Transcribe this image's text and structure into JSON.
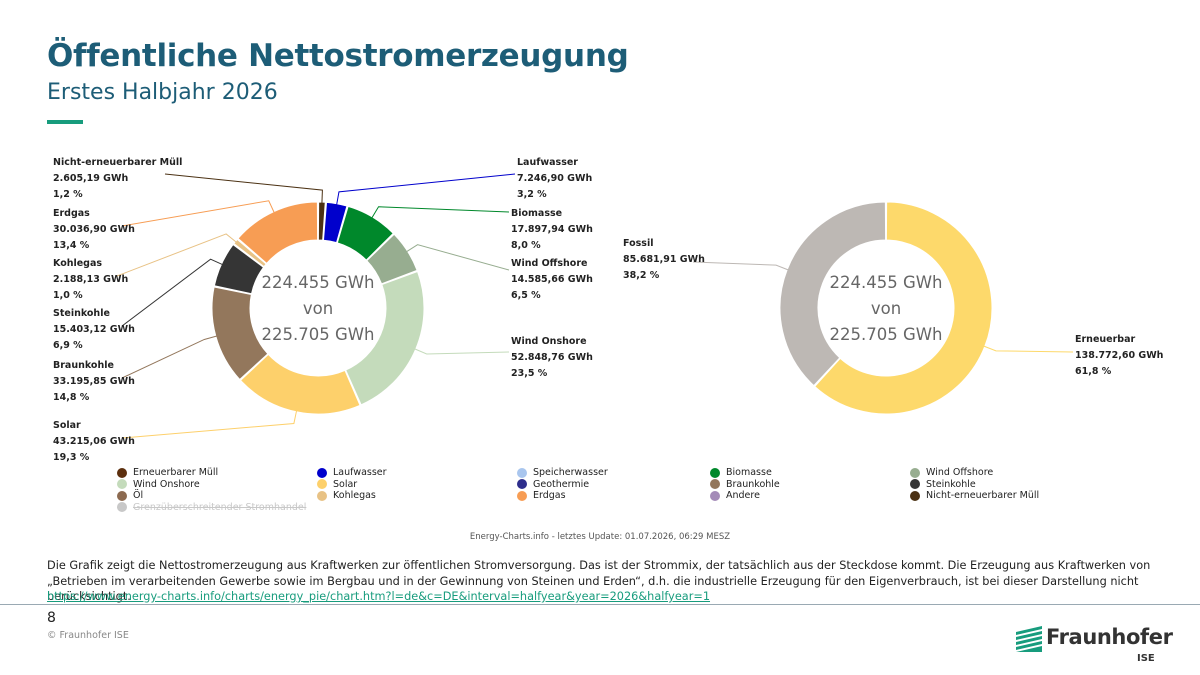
{
  "header": {
    "title": "Öffentliche Nettostromerzeugung",
    "subtitle": "Erstes Halbjahr 2026"
  },
  "chart_data": [
    {
      "type": "pie",
      "center_text": [
        "224.455 GWh",
        "von",
        "225.705 GWh"
      ],
      "slices": [
        {
          "name": "Nicht-erneuerbarer Müll",
          "value": 2605.19,
          "value_text": "2.605,19 GWh",
          "pct_text": "1,2 %",
          "color": "#4b3113"
        },
        {
          "name": "Laufwasser",
          "value": 7246.9,
          "value_text": "7.246,90 GWh",
          "pct_text": "3,2 %",
          "color": "#0000cc"
        },
        {
          "name": "Biomasse",
          "value": 17897.94,
          "value_text": "17.897,94 GWh",
          "pct_text": "8,0 %",
          "color": "#00882b"
        },
        {
          "name": "Wind Offshore",
          "value": 14585.66,
          "value_text": "14.585,66 GWh",
          "pct_text": "6,5 %",
          "color": "#97ad90"
        },
        {
          "name": "Wind Onshore",
          "value": 52848.76,
          "value_text": "52.848,76 GWh",
          "pct_text": "23,5 %",
          "color": "#c4dbbb"
        },
        {
          "name": "Solar",
          "value": 43215.06,
          "value_text": "43.215,06 GWh",
          "pct_text": "19,3 %",
          "color": "#fdd06b"
        },
        {
          "name": "Braunkohle",
          "value": 33195.85,
          "value_text": "33.195,85 GWh",
          "pct_text": "14,8 %",
          "color": "#93775c"
        },
        {
          "name": "Steinkohle",
          "value": 15403.12,
          "value_text": "15.403,12 GWh",
          "pct_text": "6,9 %",
          "color": "#353535"
        },
        {
          "name": "Kohlegas",
          "value": 2188.13,
          "value_text": "2.188,13 GWh",
          "pct_text": "1,0 %",
          "color": "#e8c285"
        },
        {
          "name": "Erdgas",
          "value": 30036.9,
          "value_text": "30.036,90 GWh",
          "pct_text": "13,4 %",
          "color": "#f79d54"
        },
        {
          "name": "Erneuerbarer Müll",
          "value": 0,
          "value_text": "",
          "pct_text": "",
          "color": "#5c2f0e"
        },
        {
          "name": "Öl",
          "value": 0,
          "value_text": "",
          "pct_text": "",
          "color": "#8c6a50"
        }
      ]
    },
    {
      "type": "pie",
      "center_text": [
        "224.455 GWh",
        "von",
        "225.705 GWh"
      ],
      "slices": [
        {
          "name": "Erneuerbar",
          "value": 138772.6,
          "value_text": "138.772,60 GWh",
          "pct_text": "61,8 %",
          "color": "#fdd96b"
        },
        {
          "name": "Fossil",
          "value": 85681.91,
          "value_text": "85.681,91 GWh",
          "pct_text": "38,2 %",
          "color": "#bdb8b4"
        }
      ]
    }
  ],
  "legend": [
    {
      "label": "Erneuerbarer Müll",
      "color": "#5c2f0e",
      "enabled": true
    },
    {
      "label": "Laufwasser",
      "color": "#0000cc",
      "enabled": true
    },
    {
      "label": "Speicherwasser",
      "color": "#a9c6ee",
      "enabled": true
    },
    {
      "label": "Biomasse",
      "color": "#00882b",
      "enabled": true
    },
    {
      "label": "Wind Offshore",
      "color": "#97ad90",
      "enabled": true
    },
    {
      "label": "Wind Onshore",
      "color": "#c4dbbb",
      "enabled": true
    },
    {
      "label": "Solar",
      "color": "#fdd06b",
      "enabled": true
    },
    {
      "label": "Geothermie",
      "color": "#2e2e8c",
      "enabled": true
    },
    {
      "label": "Braunkohle",
      "color": "#93775c",
      "enabled": true
    },
    {
      "label": "Steinkohle",
      "color": "#353535",
      "enabled": true
    },
    {
      "label": "Öl",
      "color": "#8c6a50",
      "enabled": true
    },
    {
      "label": "Kohlegas",
      "color": "#e8c285",
      "enabled": true
    },
    {
      "label": "Erdgas",
      "color": "#f79d54",
      "enabled": true
    },
    {
      "label": "Andere",
      "color": "#a48bb8",
      "enabled": true
    },
    {
      "label": "Nicht-erneuerbarer Müll",
      "color": "#4b3113",
      "enabled": true
    },
    {
      "label": "Grenzüberschreitender Stromhandel",
      "color": "#c8c8c8",
      "enabled": false
    }
  ],
  "footer": {
    "source": "Energy-Charts.info - letztes Update: 01.07.2026, 06:29 MESZ",
    "description": "Die Grafik zeigt die Nettostromerzeugung aus Kraftwerken zur öffentlichen Stromversorgung. Das ist der Strommix, der tatsächlich aus der Steckdose kommt. Die Erzeugung aus Kraftwerken von „Betrieben im verarbeitenden Gewerbe sowie im Bergbau und in der Gewinnung von Steinen und Erden“, d.h. die industrielle Erzeugung für den Eigenverbrauch, ist bei dieser Darstellung nicht berücksichtigt.",
    "url": "https://www.energy-charts.info/charts/energy_pie/chart.htm?l=de&c=DE&interval=halfyear&year=2026&halfyear=1",
    "page_number": "8",
    "copyright": "© Fraunhofer ISE",
    "logo_word": "Fraunhofer",
    "logo_sub": "ISE"
  }
}
